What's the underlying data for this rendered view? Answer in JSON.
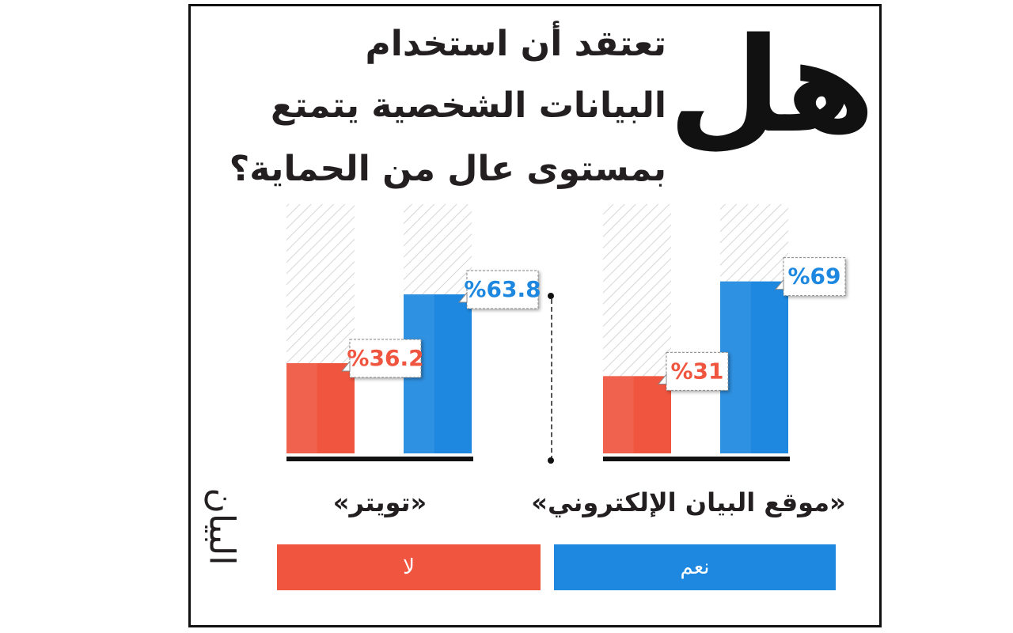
{
  "header": {
    "big_word": "هل",
    "question_lines": [
      "تعتقد أن استخدام",
      "البيانات الشخصية يتمتع",
      "بمستوى عال من الحماية؟"
    ]
  },
  "colors": {
    "yes": "#1e88e0",
    "no": "#f0553f",
    "label_yes_text": "#1e88e0",
    "label_no_text": "#f0553f"
  },
  "legend": {
    "yes_label": "نعم",
    "no_label": "لا"
  },
  "logo": {
    "text": "البيان"
  },
  "chart_data": {
    "type": "bar",
    "ylim": [
      0,
      100
    ],
    "groups": [
      {
        "name": "«تويتر»",
        "bars": [
          {
            "series": "نعم",
            "value": 63.8,
            "label": "%63.8"
          },
          {
            "series": "لا",
            "value": 36.2,
            "label": "%36.2"
          }
        ]
      },
      {
        "name": "«موقع البيان الإلكتروني»",
        "bars": [
          {
            "series": "نعم",
            "value": 69,
            "label": "%69"
          },
          {
            "series": "لا",
            "value": 31,
            "label": "%31"
          }
        ]
      }
    ]
  }
}
